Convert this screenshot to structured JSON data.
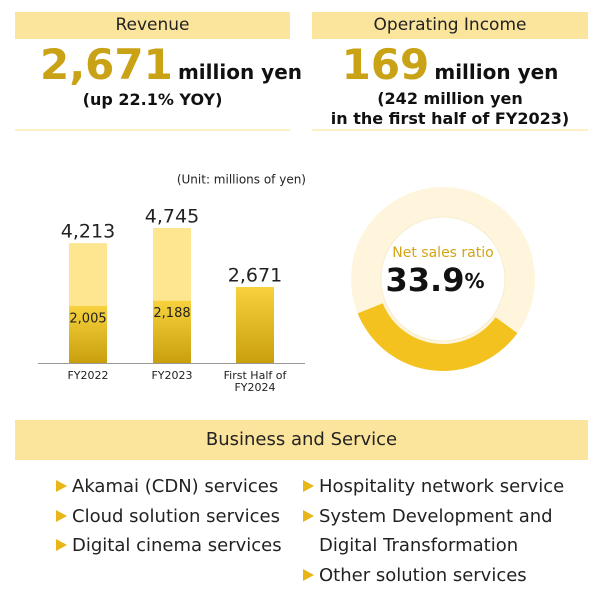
{
  "revenue": {
    "label": "Revenue",
    "value": "2,671",
    "unit": "million yen",
    "note": "(up 22.1% YOY)"
  },
  "operating_income": {
    "label": "Operating Income",
    "value": "169",
    "unit": "million yen",
    "note_lines": [
      "(242 million yen",
      "in the first half of FY2023)"
    ]
  },
  "chart_data": [
    {
      "type": "bar",
      "subtitle": "(Unit: millions of yen)",
      "categories": [
        "FY2022",
        "FY2023",
        "First Half of FY2024"
      ],
      "series": [
        {
          "color": "#fee590",
          "values": [
            4213,
            4745,
            null
          ],
          "value_labels": [
            "4,213",
            "4,745",
            null
          ]
        },
        {
          "color": "#f0c020",
          "values": [
            2005,
            2188,
            2671
          ],
          "value_labels": [
            "2,005",
            "2,188",
            "2,671"
          ]
        }
      ]
    },
    {
      "type": "pie",
      "title": "Net sales ratio",
      "values": [
        33.9
      ],
      "unit": "%",
      "color": "#f3c21f"
    }
  ],
  "business": {
    "title": "Business and Service",
    "left": [
      "Akamai (CDN) services",
      "Cloud solution services",
      "Digital cinema services"
    ],
    "right": [
      "Hospitality network service",
      "System Development and Digital Transformation",
      "Other solution services"
    ]
  }
}
